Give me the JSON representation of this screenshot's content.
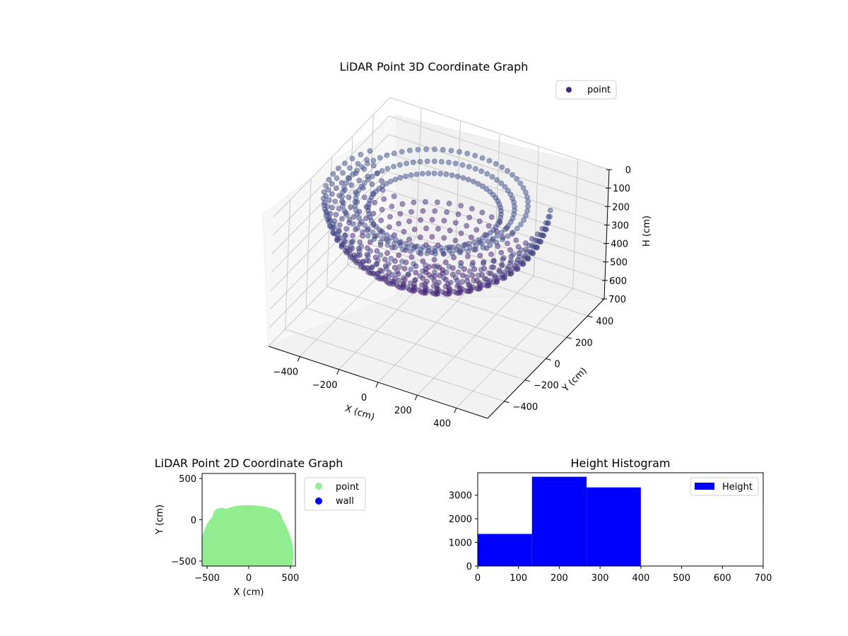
{
  "chart_data": [
    {
      "type": "scatter3d",
      "title": "LiDAR Point 3D Coordinate Graph",
      "xlabel": "X (cm)",
      "ylabel": "Y (cm)",
      "zlabel": "H (cm)",
      "x_ticks": [
        -400,
        -200,
        0,
        200,
        400
      ],
      "y_ticks": [
        -400,
        -200,
        0,
        200,
        400
      ],
      "z_ticks": [
        0,
        100,
        200,
        300,
        400,
        500,
        600,
        700
      ],
      "z_inverted": true,
      "xlim": [
        -560,
        560
      ],
      "ylim": [
        -560,
        560
      ],
      "zlim": [
        700,
        0
      ],
      "legend": [
        {
          "label": "point",
          "color": "#482677",
          "marker": "circle"
        }
      ],
      "legend_position": "upper right",
      "colormap": "viridis",
      "description": "Dome-shaped cloud of points: ring of low points near floor (H ~ 0-150) spreading radially to ~500 cm, rising into a dense dome cap near H ~ 350-400 centered around (0, 100).",
      "series": [
        {
          "name": "point",
          "shape": "hemisphere",
          "center": [
            0,
            0
          ],
          "radius_cm": 520,
          "max_height_cm": 400
        }
      ]
    },
    {
      "type": "scatter",
      "title": "LiDAR Point 2D Coordinate Graph",
      "xlabel": "X (cm)",
      "ylabel": "Y (cm)",
      "x_ticks": [
        -500,
        0,
        500
      ],
      "y_ticks": [
        -500,
        0,
        500
      ],
      "xlim": [
        -560,
        560
      ],
      "ylim": [
        -560,
        560
      ],
      "legend": [
        {
          "label": "point",
          "color": "#90ee90",
          "marker": "circle"
        },
        {
          "label": "wall",
          "color": "#0000ff",
          "marker": "circle"
        }
      ],
      "legend_position": "outside right",
      "series": [
        {
          "name": "point",
          "color": "#90ee90",
          "shape": "half-disc filled region, top at y~170, spanning x -560..540, bottom clipped at y=-560"
        },
        {
          "name": "wall",
          "color": "#0000ff",
          "points": []
        }
      ]
    },
    {
      "type": "bar",
      "subtype": "histogram",
      "title": "Height Histogram",
      "xlabel": "",
      "ylabel": "",
      "x_ticks": [
        0,
        100,
        200,
        300,
        400,
        500,
        600,
        700
      ],
      "y_ticks": [
        0,
        1000,
        2000,
        3000
      ],
      "xlim": [
        0,
        700
      ],
      "ylim": [
        0,
        3950
      ],
      "legend": [
        {
          "label": "Height",
          "color": "#0000ff"
        }
      ],
      "legend_position": "upper right",
      "bins": [
        {
          "start": 0,
          "end": 133,
          "count": 1360
        },
        {
          "start": 133,
          "end": 267,
          "count": 3780
        },
        {
          "start": 267,
          "end": 400,
          "count": 3330
        }
      ],
      "categories": [
        "0-133",
        "133-267",
        "267-400"
      ],
      "values": [
        1360,
        3780,
        3330
      ]
    }
  ],
  "ui": {
    "plot3d": {
      "title": "LiDAR Point 3D Coordinate Graph",
      "legend_label": "point",
      "xlabel": "X (cm)",
      "ylabel": "Y (cm)",
      "zlabel": "H (cm)"
    },
    "plot2d": {
      "title": "LiDAR Point 2D Coordinate Graph",
      "legend_point": "point",
      "legend_wall": "wall",
      "xlabel": "X (cm)",
      "ylabel": "Y (cm)"
    },
    "hist": {
      "title": "Height Histogram",
      "legend_label": "Height"
    }
  }
}
